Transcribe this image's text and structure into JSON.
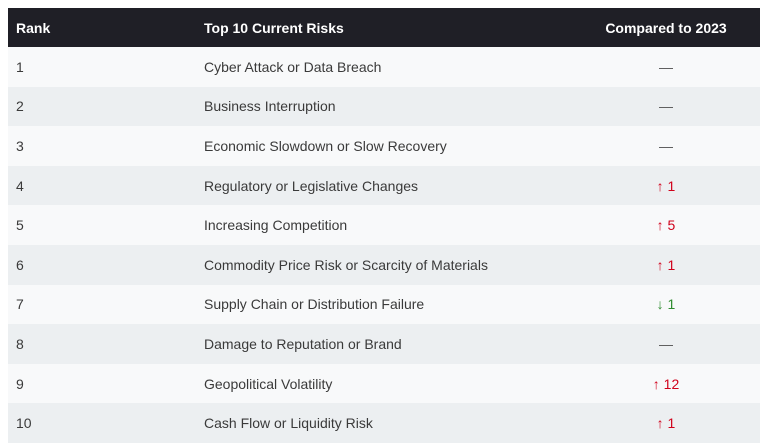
{
  "table": {
    "headers": [
      "Rank",
      "Top 10 Current Risks",
      "Compared to 2023"
    ],
    "rows": [
      [
        "1",
        "Cyber Attack or Data Breach",
        "—"
      ],
      [
        "2",
        "Business Interruption",
        "—"
      ],
      [
        "3",
        "Economic Slowdown or Slow Recovery",
        "—"
      ],
      [
        "4",
        "Regulatory or Legislative Changes",
        "↑ 1"
      ],
      [
        "5",
        "Increasing Competition",
        "↑ 5"
      ],
      [
        "6",
        "Commodity Price Risk or Scarcity of Materials",
        "↑ 1"
      ],
      [
        "7",
        "Supply Chain or Distribution Failure",
        "↓ 1"
      ],
      [
        "8",
        "Damage to Reputation or Brand",
        "—"
      ],
      [
        "9",
        "Geopolitical Volatility",
        "↑ 12"
      ],
      [
        "10",
        "Cash Flow or Liquidity Risk",
        "↑ 1"
      ]
    ]
  }
}
